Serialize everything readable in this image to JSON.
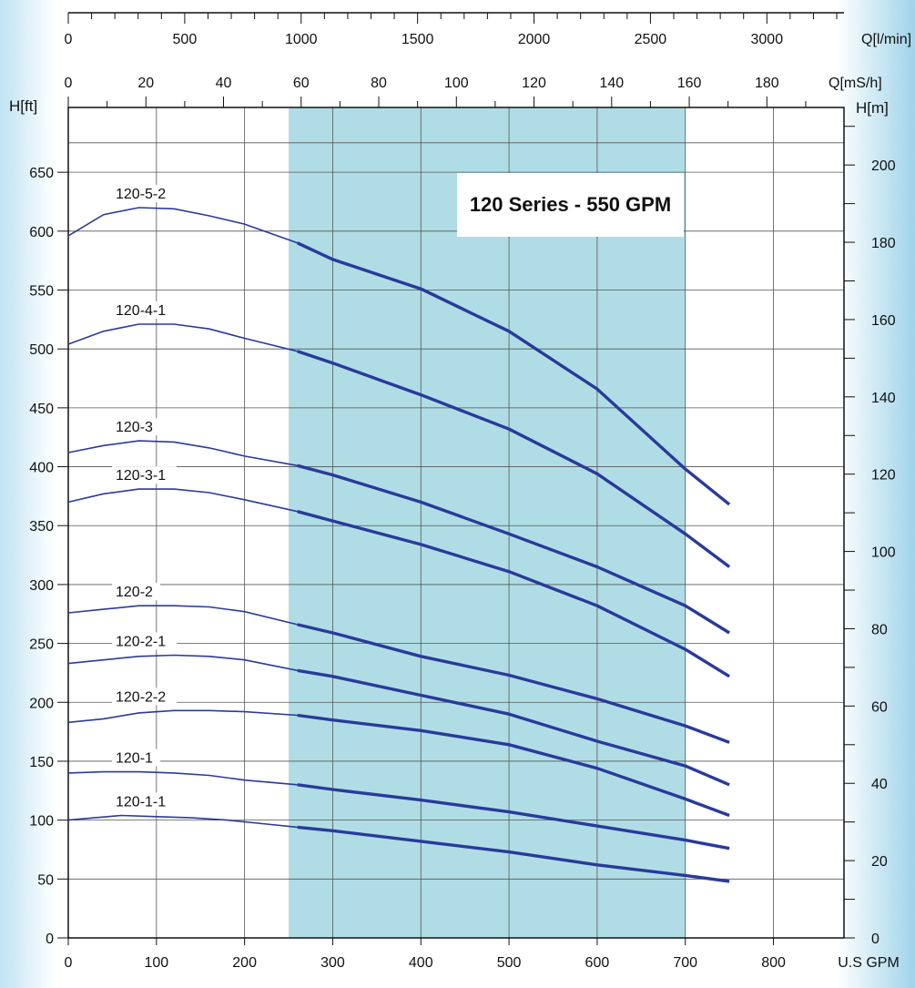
{
  "chart_data": {
    "type": "line",
    "title": "120 Series - 550 GPM",
    "xlabel": "U.S GPM",
    "ylabel_left": "H[ft]",
    "ylabel_right": "H[m]",
    "top_axis_1_label": "Q[l/min]",
    "top_axis_2_label": "Q[mS/h]",
    "x_ticks": [
      "0",
      "100",
      "200",
      "300",
      "400",
      "500",
      "600",
      "700",
      "800"
    ],
    "y_ticks_ft": [
      "0",
      "50",
      "100",
      "150",
      "200",
      "250",
      "300",
      "350",
      "400",
      "450",
      "500",
      "550",
      "600",
      "650"
    ],
    "y_ticks_m": [
      "0",
      "20",
      "40",
      "60",
      "80",
      "100",
      "120",
      "140",
      "160",
      "180",
      "200"
    ],
    "top_ticks_lmin": [
      "0",
      "500",
      "1000",
      "1500",
      "2000",
      "2500",
      "3000"
    ],
    "top_ticks_m3h": [
      "0",
      "20",
      "40",
      "60",
      "80",
      "100",
      "120",
      "140",
      "160",
      "180"
    ],
    "xlim": [
      0,
      880
    ],
    "ylim": [
      0,
      705
    ],
    "grid": true,
    "recommended_range": [
      250,
      700
    ],
    "range_color": "#b0dde5",
    "curve_color": "#2a3a9a",
    "series": [
      {
        "name": "120-5-2",
        "x": [
          0,
          40,
          80,
          120,
          160,
          200,
          260,
          300,
          400,
          500,
          600,
          700,
          750
        ],
        "y": [
          596,
          614,
          620,
          619,
          613,
          606,
          590,
          576,
          551,
          515,
          466,
          398,
          368
        ]
      },
      {
        "name": "120-4-1",
        "x": [
          0,
          40,
          80,
          120,
          160,
          200,
          260,
          300,
          400,
          500,
          600,
          700,
          750
        ],
        "y": [
          504,
          515,
          521,
          521,
          517,
          509,
          498,
          488,
          461,
          432,
          394,
          343,
          315
        ]
      },
      {
        "name": "120-3",
        "x": [
          0,
          40,
          80,
          120,
          160,
          200,
          260,
          300,
          400,
          500,
          600,
          700,
          750
        ],
        "y": [
          412,
          418,
          422,
          421,
          416,
          409,
          401,
          393,
          370,
          343,
          315,
          282,
          259
        ]
      },
      {
        "name": "120-3-1",
        "x": [
          0,
          40,
          80,
          120,
          160,
          200,
          260,
          300,
          400,
          500,
          600,
          700,
          750
        ],
        "y": [
          370,
          377,
          381,
          381,
          378,
          372,
          362,
          354,
          334,
          311,
          282,
          245,
          222
        ]
      },
      {
        "name": "120-2",
        "x": [
          0,
          40,
          80,
          120,
          160,
          200,
          260,
          300,
          400,
          500,
          600,
          700,
          750
        ],
        "y": [
          276,
          279,
          282,
          282,
          281,
          277,
          266,
          259,
          239,
          223,
          203,
          180,
          166
        ]
      },
      {
        "name": "120-2-1",
        "x": [
          0,
          40,
          80,
          120,
          160,
          200,
          260,
          300,
          400,
          500,
          600,
          700,
          750
        ],
        "y": [
          233,
          236,
          239,
          240,
          239,
          236,
          227,
          222,
          206,
          190,
          167,
          146,
          130
        ]
      },
      {
        "name": "120-2-2",
        "x": [
          0,
          40,
          80,
          120,
          160,
          200,
          260,
          300,
          400,
          500,
          600,
          700,
          750
        ],
        "y": [
          183,
          186,
          191,
          193,
          193,
          192,
          189,
          185,
          176,
          164,
          144,
          118,
          104
        ]
      },
      {
        "name": "120-1",
        "x": [
          0,
          40,
          80,
          120,
          160,
          200,
          260,
          300,
          400,
          500,
          600,
          700,
          750
        ],
        "y": [
          140,
          141,
          141,
          140,
          138,
          134,
          130,
          126,
          117,
          107,
          95,
          83,
          76
        ]
      },
      {
        "name": "120-1-1",
        "x": [
          0,
          60,
          100,
          140,
          180,
          220,
          260,
          300,
          400,
          500,
          600,
          700,
          750
        ],
        "y": [
          100,
          104,
          103,
          102,
          100,
          97,
          94,
          91,
          82,
          73,
          62,
          53,
          48
        ]
      }
    ]
  }
}
